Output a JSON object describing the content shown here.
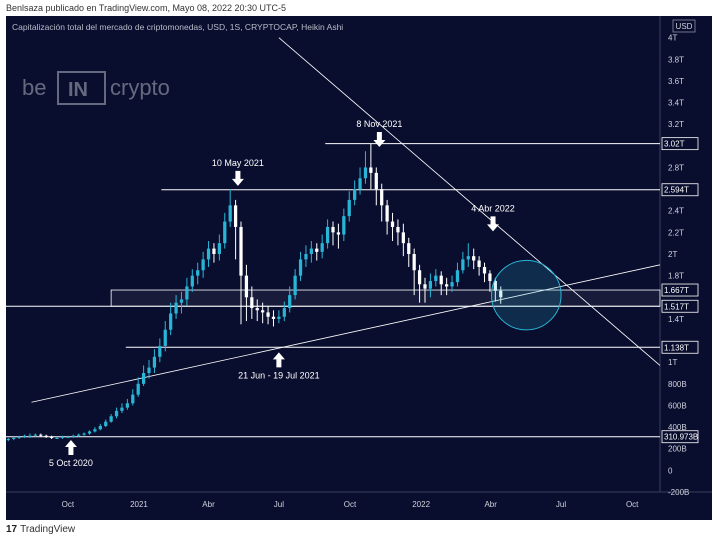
{
  "header": {
    "published": "Benlsaza publicado en TradingView.com, Mayo 08, 2022 20:30 UTC-5"
  },
  "footer": {
    "brand": "TradingView"
  },
  "chart_data": {
    "type": "candlestick",
    "title": "Capitalización total del mercado de criptomonedas, USD, 1S, CRYPTOCAP, Heikin Ashi",
    "watermark": "beincrypto",
    "currency_label": "USD",
    "colors": {
      "background": "#0a0e2e",
      "up": "#29b6d6",
      "down": "#ffffff",
      "lines": "#ffffff",
      "circle": "#29b6d6"
    },
    "x_axis": {
      "range": [
        "2020-07-13",
        "2022-11-06"
      ],
      "ticks": [
        {
          "label": "Oct",
          "date": "2020-10-01"
        },
        {
          "label": "2021",
          "date": "2021-01-01"
        },
        {
          "label": "Abr",
          "date": "2021-04-01"
        },
        {
          "label": "Jul",
          "date": "2021-07-01"
        },
        {
          "label": "Oct",
          "date": "2021-10-01"
        },
        {
          "label": "2022",
          "date": "2022-01-01"
        },
        {
          "label": "Abr",
          "date": "2022-04-01"
        },
        {
          "label": "Jul",
          "date": "2022-07-01"
        },
        {
          "label": "Oct",
          "date": "2022-10-01"
        }
      ]
    },
    "y_axis": {
      "range": [
        -0.2,
        4.2
      ],
      "ticks": [
        {
          "label": "4T",
          "value": 4.0
        },
        {
          "label": "3.8T",
          "value": 3.8
        },
        {
          "label": "3.6T",
          "value": 3.6
        },
        {
          "label": "3.4T",
          "value": 3.4
        },
        {
          "label": "3.2T",
          "value": 3.2
        },
        {
          "label": "2.8T",
          "value": 2.8
        },
        {
          "label": "2.4T",
          "value": 2.4
        },
        {
          "label": "2.2T",
          "value": 2.2
        },
        {
          "label": "2T",
          "value": 2.0
        },
        {
          "label": "1.8T",
          "value": 1.8
        },
        {
          "label": "1.4T",
          "value": 1.4
        },
        {
          "label": "1T",
          "value": 1.0
        },
        {
          "label": "800B",
          "value": 0.8
        },
        {
          "label": "600B",
          "value": 0.6
        },
        {
          "label": "400B",
          "value": 0.4
        },
        {
          "label": "200B",
          "value": 0.2
        },
        {
          "label": "0",
          "value": 0.0
        },
        {
          "label": "-200B",
          "value": -0.2
        }
      ]
    },
    "price_labels": [
      {
        "label": "3.02T",
        "value": 3.02
      },
      {
        "label": "2.594T",
        "value": 2.594
      },
      {
        "label": "1.667T",
        "value": 1.667
      },
      {
        "label": "1.517T",
        "value": 1.517
      },
      {
        "label": "1.138T",
        "value": 1.138
      },
      {
        "label": "310.973B",
        "value": 0.311
      }
    ],
    "horizontal_lines": [
      {
        "value": 3.02,
        "from": "2021-08-30"
      },
      {
        "value": 2.594,
        "from": "2021-01-30"
      },
      {
        "value": 1.517,
        "from": "2020-07-13"
      },
      {
        "value": 1.138,
        "from": "2020-12-15"
      },
      {
        "value": 0.311,
        "from": "2020-07-13"
      }
    ],
    "zone": {
      "from_value": 1.517,
      "to_value": 1.667,
      "from": "2020-11-26"
    },
    "trendlines": [
      {
        "start": {
          "date": "2020-08-15",
          "value": 0.63
        },
        "end": {
          "date": "2022-11-06",
          "value": 1.9
        }
      },
      {
        "start": {
          "date": "2021-07-01",
          "value": 4.0
        },
        "end": {
          "date": "2022-11-06",
          "value": 0.97
        }
      }
    ],
    "circle": {
      "date": "2022-05-17",
      "value": 1.62,
      "radius_days": 45
    },
    "annotations": [
      {
        "text": "5 Oct 2020",
        "date": "2020-10-05",
        "value": 0.29,
        "arrow": "up"
      },
      {
        "text": "10 May 2021",
        "date": "2021-05-09",
        "value": 2.62,
        "arrow": "down"
      },
      {
        "text": "21 Jun - 19 Jul 2021",
        "date": "2021-07-01",
        "value": 1.1,
        "arrow": "up"
      },
      {
        "text": "8 Nov 2021",
        "date": "2021-11-08",
        "value": 2.98,
        "arrow": "down"
      },
      {
        "text": "4 Abr 2022",
        "date": "2022-04-04",
        "value": 2.2,
        "arrow": "down"
      }
    ],
    "weeks_start": "2020-07-13",
    "candles": [
      [
        0.28,
        0.29,
        0.3,
        0.27
      ],
      [
        0.29,
        0.3,
        0.31,
        0.28
      ],
      [
        0.3,
        0.31,
        0.32,
        0.29
      ],
      [
        0.31,
        0.32,
        0.33,
        0.3
      ],
      [
        0.32,
        0.32,
        0.34,
        0.3
      ],
      [
        0.32,
        0.33,
        0.34,
        0.31
      ],
      [
        0.33,
        0.32,
        0.34,
        0.31
      ],
      [
        0.32,
        0.31,
        0.33,
        0.3
      ],
      [
        0.31,
        0.3,
        0.32,
        0.29
      ],
      [
        0.3,
        0.3,
        0.31,
        0.29
      ],
      [
        0.3,
        0.31,
        0.32,
        0.29
      ],
      [
        0.31,
        0.31,
        0.32,
        0.3
      ],
      [
        0.31,
        0.32,
        0.33,
        0.3
      ],
      [
        0.32,
        0.33,
        0.34,
        0.31
      ],
      [
        0.33,
        0.34,
        0.35,
        0.32
      ],
      [
        0.34,
        0.36,
        0.37,
        0.33
      ],
      [
        0.36,
        0.38,
        0.4,
        0.35
      ],
      [
        0.38,
        0.41,
        0.43,
        0.37
      ],
      [
        0.41,
        0.45,
        0.47,
        0.4
      ],
      [
        0.45,
        0.5,
        0.52,
        0.44
      ],
      [
        0.5,
        0.55,
        0.58,
        0.48
      ],
      [
        0.55,
        0.58,
        0.62,
        0.53
      ],
      [
        0.58,
        0.62,
        0.66,
        0.56
      ],
      [
        0.62,
        0.7,
        0.75,
        0.6
      ],
      [
        0.7,
        0.8,
        0.86,
        0.68
      ],
      [
        0.8,
        0.9,
        0.97,
        0.78
      ],
      [
        0.9,
        0.95,
        1.02,
        0.85
      ],
      [
        0.95,
        1.05,
        1.12,
        0.9
      ],
      [
        1.05,
        1.15,
        1.22,
        1.0
      ],
      [
        1.15,
        1.3,
        1.38,
        1.1
      ],
      [
        1.3,
        1.45,
        1.55,
        1.25
      ],
      [
        1.45,
        1.55,
        1.62,
        1.4
      ],
      [
        1.55,
        1.58,
        1.65,
        1.45
      ],
      [
        1.58,
        1.7,
        1.78,
        1.52
      ],
      [
        1.7,
        1.8,
        1.86,
        1.65
      ],
      [
        1.8,
        1.85,
        1.92,
        1.72
      ],
      [
        1.85,
        1.95,
        2.02,
        1.78
      ],
      [
        1.95,
        2.05,
        2.12,
        1.88
      ],
      [
        2.05,
        2.0,
        2.1,
        1.92
      ],
      [
        2.0,
        2.1,
        2.18,
        1.94
      ],
      [
        2.1,
        2.3,
        2.38,
        2.05
      ],
      [
        2.3,
        2.45,
        2.6,
        2.25
      ],
      [
        2.45,
        2.25,
        2.5,
        1.95
      ],
      [
        2.25,
        1.8,
        2.3,
        1.35
      ],
      [
        1.8,
        1.6,
        1.9,
        1.38
      ],
      [
        1.6,
        1.5,
        1.7,
        1.4
      ],
      [
        1.5,
        1.48,
        1.58,
        1.38
      ],
      [
        1.48,
        1.46,
        1.55,
        1.36
      ],
      [
        1.46,
        1.42,
        1.52,
        1.35
      ],
      [
        1.42,
        1.4,
        1.48,
        1.33
      ],
      [
        1.4,
        1.42,
        1.48,
        1.36
      ],
      [
        1.42,
        1.5,
        1.56,
        1.38
      ],
      [
        1.5,
        1.62,
        1.7,
        1.46
      ],
      [
        1.62,
        1.8,
        1.86,
        1.58
      ],
      [
        1.8,
        1.95,
        2.02,
        1.75
      ],
      [
        1.95,
        2.0,
        2.08,
        1.88
      ],
      [
        2.0,
        2.05,
        2.12,
        1.92
      ],
      [
        2.05,
        2.02,
        2.1,
        1.94
      ],
      [
        2.02,
        2.1,
        2.18,
        1.96
      ],
      [
        2.1,
        2.25,
        2.32,
        2.05
      ],
      [
        2.25,
        2.2,
        2.3,
        2.08
      ],
      [
        2.2,
        2.18,
        2.28,
        2.05
      ],
      [
        2.18,
        2.35,
        2.42,
        2.12
      ],
      [
        2.35,
        2.5,
        2.58,
        2.3
      ],
      [
        2.5,
        2.6,
        2.68,
        2.45
      ],
      [
        2.6,
        2.7,
        2.8,
        2.55
      ],
      [
        2.7,
        2.8,
        2.95,
        2.65
      ],
      [
        2.8,
        2.75,
        3.02,
        2.6
      ],
      [
        2.75,
        2.6,
        2.8,
        2.45
      ],
      [
        2.6,
        2.45,
        2.65,
        2.3
      ],
      [
        2.45,
        2.3,
        2.5,
        2.18
      ],
      [
        2.3,
        2.25,
        2.38,
        2.12
      ],
      [
        2.25,
        2.2,
        2.32,
        2.08
      ],
      [
        2.2,
        2.1,
        2.28,
        1.98
      ],
      [
        2.1,
        2.0,
        2.15,
        1.88
      ],
      [
        2.0,
        1.85,
        2.05,
        1.62
      ],
      [
        1.85,
        1.72,
        1.9,
        1.55
      ],
      [
        1.72,
        1.68,
        1.78,
        1.55
      ],
      [
        1.68,
        1.75,
        1.82,
        1.6
      ],
      [
        1.75,
        1.8,
        1.86,
        1.7
      ],
      [
        1.8,
        1.72,
        1.84,
        1.62
      ],
      [
        1.72,
        1.7,
        1.78,
        1.62
      ],
      [
        1.7,
        1.74,
        1.8,
        1.65
      ],
      [
        1.74,
        1.85,
        1.92,
        1.7
      ],
      [
        1.85,
        1.95,
        2.02,
        1.82
      ],
      [
        1.95,
        1.98,
        2.1,
        1.88
      ],
      [
        1.98,
        1.94,
        2.05,
        1.86
      ],
      [
        1.94,
        1.88,
        1.98,
        1.8
      ],
      [
        1.88,
        1.82,
        1.92,
        1.74
      ],
      [
        1.82,
        1.75,
        1.85,
        1.65
      ],
      [
        1.75,
        1.66,
        1.78,
        1.56
      ],
      [
        1.66,
        1.6,
        1.7,
        1.54
      ]
    ]
  }
}
